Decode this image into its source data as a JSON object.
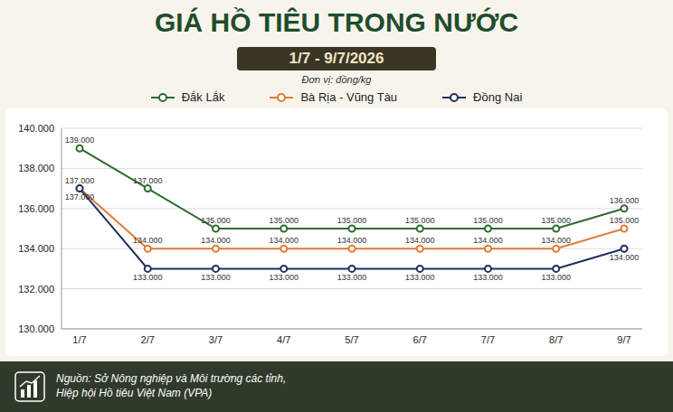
{
  "chart_data": {
    "type": "line",
    "title": "GIÁ HỒ TIÊU TRONG NƯỚC",
    "subtitle": "1/7 - 9/7/2026",
    "unit_note": "Đơn vị: đồng/kg",
    "source": [
      "Nguồn: Sở Nông nghiệp và Môi trường các tỉnh,",
      "Hiệp hội Hồ tiêu Việt Nam (VPA)"
    ],
    "categories": [
      "1/7",
      "2/7",
      "3/7",
      "4/7",
      "5/7",
      "6/7",
      "7/7",
      "8/7",
      "9/7"
    ],
    "series": [
      {
        "name": "Đắk Lắk",
        "color": "#2e6b2f",
        "marker": "circle",
        "values": [
          139000,
          137000,
          135000,
          135000,
          135000,
          135000,
          135000,
          135000,
          136000
        ],
        "value_labels": [
          "139.000",
          "137.000",
          "135.000",
          "135.000",
          "135.000",
          "135.000",
          "135.000",
          "135.000",
          "136.000"
        ]
      },
      {
        "name": "Bà Rịa - Vũng Tàu",
        "color": "#e07b39",
        "marker": "circle",
        "values": [
          137000,
          134000,
          134000,
          134000,
          134000,
          134000,
          134000,
          134000,
          135000
        ],
        "value_labels": [
          "137.000",
          "134.000",
          "134.000",
          "134.000",
          "134.000",
          "134.000",
          "134.000",
          "134.000",
          "135.000"
        ]
      },
      {
        "name": "Đồng Nai",
        "color": "#1f2f5c",
        "marker": "circle",
        "values": [
          137000,
          133000,
          133000,
          133000,
          133000,
          133000,
          133000,
          133000,
          134000
        ],
        "value_labels": [
          "137.000",
          "133.000",
          "133.000",
          "133.000",
          "133.000",
          "133.000",
          "133.000",
          "133.000",
          "134.000"
        ]
      }
    ],
    "ylim": [
      130000,
      140000
    ],
    "yticks": [
      {
        "value": 130000,
        "label": "130.000"
      },
      {
        "value": 132000,
        "label": "132.000"
      },
      {
        "value": 134000,
        "label": "134.000"
      },
      {
        "value": 136000,
        "label": "136.000"
      },
      {
        "value": 138000,
        "label": "138.000"
      },
      {
        "value": 140000,
        "label": "140.000"
      }
    ],
    "grid": true,
    "legend": "top",
    "data_labels": true
  }
}
